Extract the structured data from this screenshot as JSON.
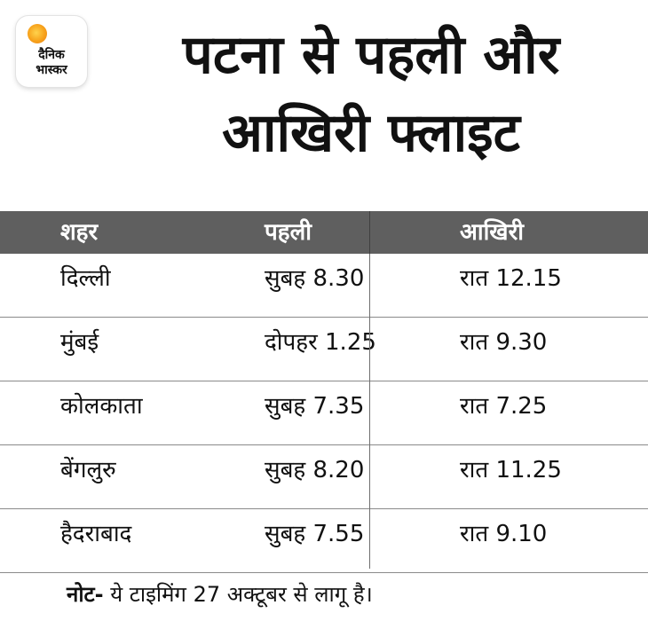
{
  "logo": {
    "line1": "दैनिक",
    "line2": "भास्कर"
  },
  "headline": {
    "line1": "पटना से पहली और",
    "line2": "आखिरी फ्लाइट"
  },
  "table": {
    "headers": [
      "शहर",
      "पहली",
      "आखिरी"
    ],
    "rows": [
      [
        "दिल्ली",
        "सुबह 8.30",
        "रात 12.15"
      ],
      [
        "मुंबई",
        "दोपहर 1.25",
        "रात 9.30"
      ],
      [
        "कोलकाता",
        "सुबह 7.35",
        "रात 7.25"
      ],
      [
        "बेंगलुरु",
        "सुबह 8.20",
        "रात 11.25"
      ],
      [
        "हैदराबाद",
        "सुबह 7.55",
        "रात 9.10"
      ]
    ]
  },
  "note": {
    "label": "नोट-",
    "text": " ये टाइमिंग 27 अक्टूबर से लागू है।"
  },
  "colors": {
    "header_bg": "#5f5f5f",
    "logo_sun": "#f7a21b"
  }
}
